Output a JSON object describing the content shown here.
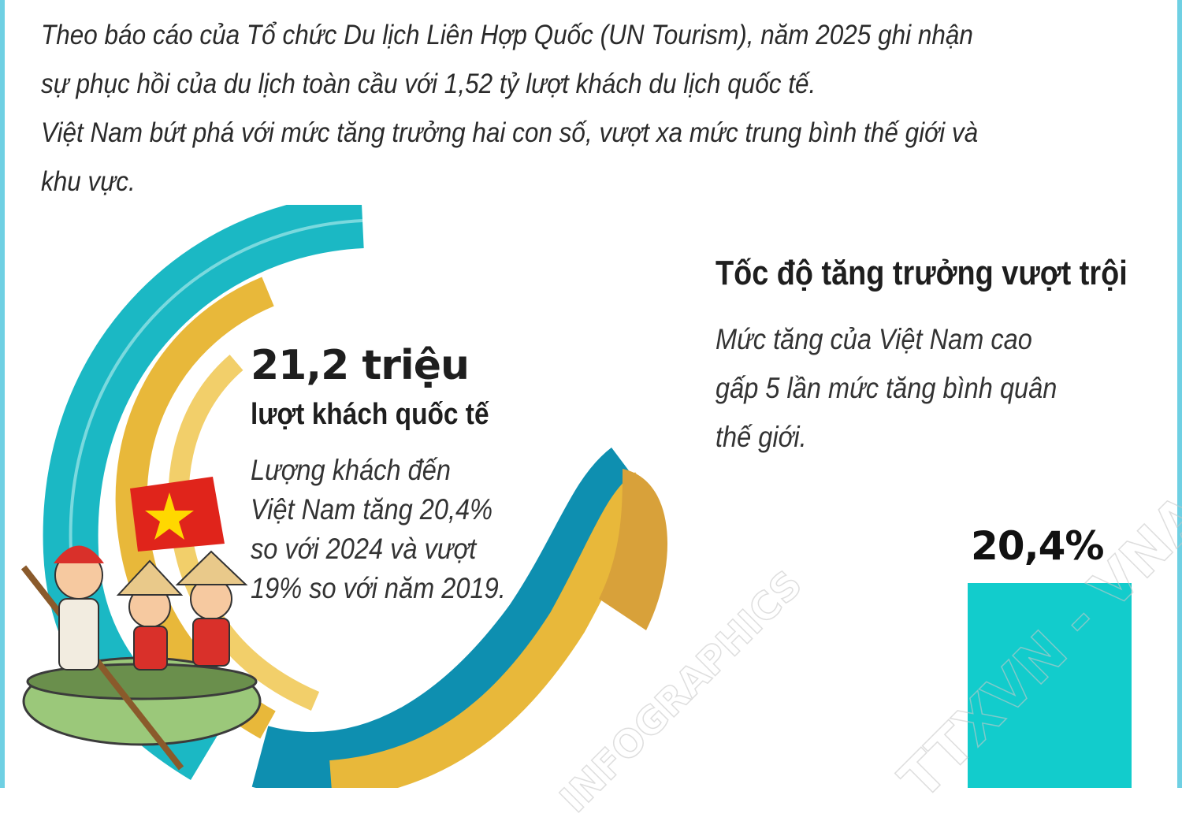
{
  "intro": {
    "line1": "Theo báo cáo của Tổ chức Du lịch Liên Hợp Quốc (UN Tourism), năm 2025 ghi nhận",
    "line2": "sự phục hồi của du lịch toàn cầu với 1,52 tỷ lượt khách du lịch quốc tế.",
    "line3": "Việt Nam bứt phá với mức tăng trưởng hai con số, vượt xa mức trung bình thế giới và",
    "line4": "khu vực."
  },
  "left": {
    "big_number": "21,2 triệu",
    "subtitle": "lượt khách quốc tế",
    "desc": [
      "Lượng khách đến",
      "Việt Nam tăng 20,4%",
      "so với 2024 và vượt",
      "19% so với năm 2019."
    ]
  },
  "right": {
    "title": "Tốc độ tăng trưởng vượt trội",
    "desc": [
      "Mức tăng của Việt Nam cao",
      "gấp 5 lần mức tăng bình quân",
      "thế giới."
    ]
  },
  "chart_data": {
    "type": "bar",
    "categories": [
      ""
    ],
    "values": [
      20.4
    ],
    "data_labels": [
      "20,4%"
    ],
    "colors": [
      "#12cccc"
    ]
  },
  "watermarks": [
    "TTXVN - VNA",
    "INFOGRAPHICS"
  ],
  "colors": {
    "teal": "#12cccc",
    "gold": "#e8b83a",
    "edge": "#6fd0e3",
    "flag_red": "#e0241b",
    "flag_star": "#ffd800"
  }
}
